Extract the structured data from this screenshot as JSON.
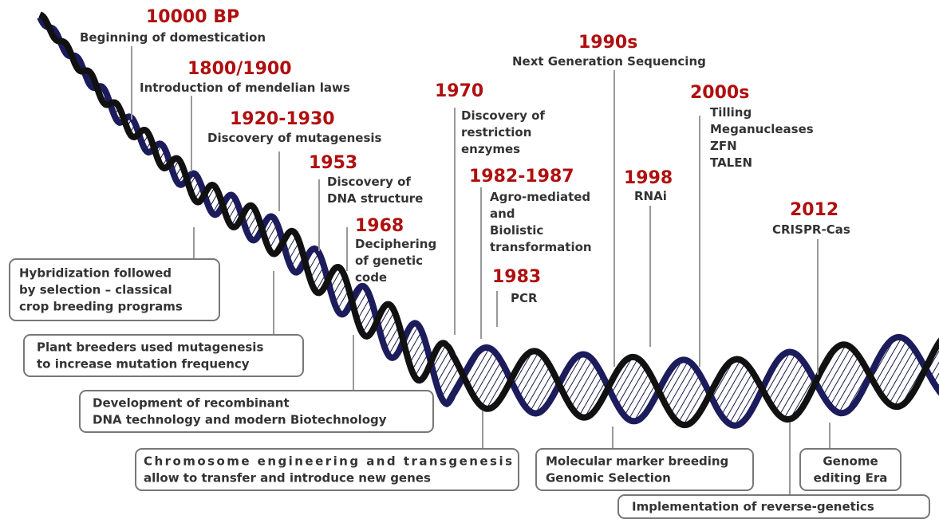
{
  "events": [
    {
      "year": "10000 BP",
      "lines": [
        "Beginning of domestication"
      ]
    },
    {
      "year": "1800/1900",
      "lines": [
        "Introduction of mendelian laws"
      ]
    },
    {
      "year": "1920-1930",
      "lines": [
        "Discovery of mutagenesis"
      ]
    },
    {
      "year": "1953",
      "lines": [
        "Discovery of",
        "DNA structure"
      ]
    },
    {
      "year": "1968",
      "lines": [
        "Deciphering",
        "of genetic",
        "code"
      ]
    },
    {
      "year": "1970",
      "lines": [
        "Discovery of",
        "restriction",
        "enzymes"
      ]
    },
    {
      "year": "1982-1987",
      "lines": [
        "Agro-mediated",
        "and",
        "Biolistic",
        "transformation"
      ]
    },
    {
      "year": "1983",
      "lines": [
        "PCR"
      ]
    },
    {
      "year": "1990s",
      "lines": [
        "Next Generation Sequencing"
      ]
    },
    {
      "year": "1998",
      "lines": [
        "RNAi"
      ]
    },
    {
      "year": "2000s",
      "lines": [
        "Tilling",
        "Meganucleases",
        "ZFN",
        "TALEN"
      ]
    },
    {
      "year": "2012",
      "lines": [
        "CRISPR-Cas"
      ]
    }
  ],
  "eras": [
    {
      "lines": [
        "Hybridization followed",
        "by selection – classical",
        "crop breeding programs"
      ]
    },
    {
      "lines": [
        "Plant breeders used mutagenesis",
        "to increase mutation frequency"
      ]
    },
    {
      "lines": [
        "Development of recombinant",
        "DNA technology and modern Biotechnology"
      ]
    },
    {
      "lines": [
        "Chromosome engineering and transgenesis",
        "allow to transfer and introduce new genes"
      ]
    },
    {
      "lines": [
        "Molecular marker breeding",
        "Genomic Selection"
      ]
    },
    {
      "lines": [
        "Genome",
        "editing Era"
      ]
    },
    {
      "lines": [
        "Implementation of reverse-genetics"
      ]
    }
  ]
}
